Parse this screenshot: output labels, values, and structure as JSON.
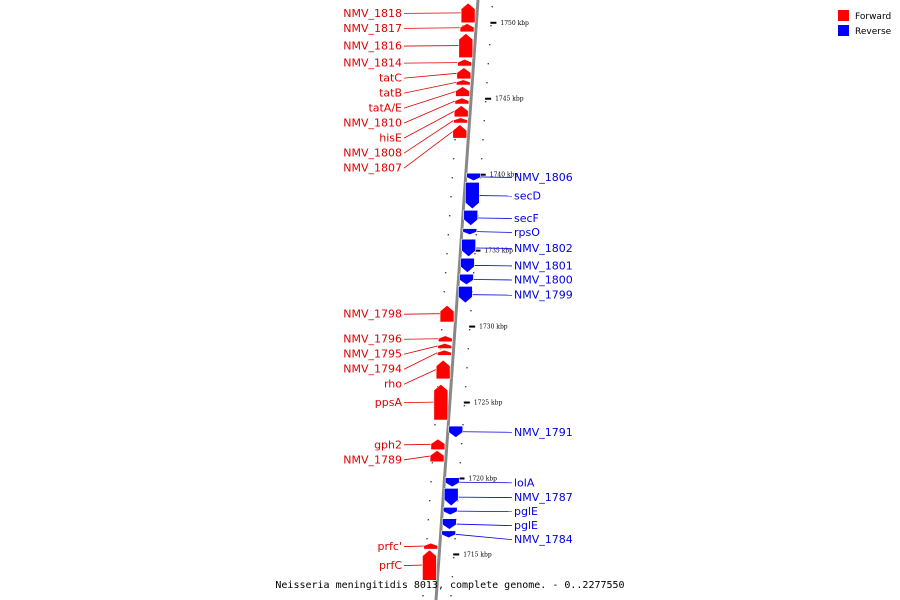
{
  "caption": "Neisseria meningitidis 8013, complete genome. - 0..2277550",
  "legend": [
    {
      "label": "Forward",
      "color": "#ff0000"
    },
    {
      "label": "Reverse",
      "color": "#0000ff"
    }
  ],
  "colors": {
    "forward": "#ff0000",
    "reverse": "#0000ff",
    "forward_text": "#e00000",
    "reverse_text": "#0000dd",
    "axis": "#888888"
  },
  "scale": [
    {
      "kbp": 1750,
      "label": "1750 kbp"
    },
    {
      "kbp": 1745,
      "label": "1745 kbp"
    },
    {
      "kbp": 1740,
      "label": "1740 kbp"
    },
    {
      "kbp": 1735,
      "label": "1735 kbp"
    },
    {
      "kbp": 1730,
      "label": "1730 kbp"
    },
    {
      "kbp": 1725,
      "label": "1725 kbp"
    },
    {
      "kbp": 1720,
      "label": "1720 kbp"
    },
    {
      "kbp": 1715,
      "label": "1715 kbp"
    }
  ],
  "forward_genes": [
    {
      "name": "NMV_1818",
      "start_kbp": 1750.0,
      "end_kbp": 1751.3
    },
    {
      "name": "NMV_1817",
      "start_kbp": 1749.4,
      "end_kbp": 1749.95
    },
    {
      "name": "NMV_1816",
      "start_kbp": 1747.7,
      "end_kbp": 1749.3
    },
    {
      "name": "NMV_1814",
      "start_kbp": 1747.15,
      "end_kbp": 1747.6
    },
    {
      "name": "tatC",
      "start_kbp": 1746.3,
      "end_kbp": 1747.05
    },
    {
      "name": "tatB",
      "start_kbp": 1745.9,
      "end_kbp": 1746.25
    },
    {
      "name": "tatA/E",
      "start_kbp": 1745.15,
      "end_kbp": 1745.8
    },
    {
      "name": "NMV_1810",
      "start_kbp": 1744.65,
      "end_kbp": 1745.05
    },
    {
      "name": "hisE",
      "start_kbp": 1743.8,
      "end_kbp": 1744.55
    },
    {
      "name": "NMV_1808",
      "start_kbp": 1743.4,
      "end_kbp": 1743.75
    },
    {
      "name": "NMV_1807",
      "start_kbp": 1742.4,
      "end_kbp": 1743.3
    },
    {
      "name": "NMV_1798",
      "start_kbp": 1730.3,
      "end_kbp": 1731.4
    },
    {
      "name": "NMV_1796",
      "start_kbp": 1729.0,
      "end_kbp": 1729.4
    },
    {
      "name": "NMV_1795",
      "start_kbp": 1728.55,
      "end_kbp": 1728.9
    },
    {
      "name": "NMV_1794",
      "start_kbp": 1728.1,
      "end_kbp": 1728.45
    },
    {
      "name": "rho",
      "start_kbp": 1726.55,
      "end_kbp": 1727.8
    },
    {
      "name": "ppsA",
      "start_kbp": 1723.85,
      "end_kbp": 1726.2
    },
    {
      "name": "gph2",
      "start_kbp": 1721.9,
      "end_kbp": 1722.6
    },
    {
      "name": "NMV_1789",
      "start_kbp": 1721.1,
      "end_kbp": 1721.85
    },
    {
      "name": "prfc'",
      "start_kbp": 1715.35,
      "end_kbp": 1715.75
    },
    {
      "name": "prfC",
      "start_kbp": 1713.3,
      "end_kbp": 1715.3
    }
  ],
  "reverse_genes": [
    {
      "name": "NMV_1806",
      "start_kbp": 1739.6,
      "end_kbp": 1740.1
    },
    {
      "name": "secD",
      "start_kbp": 1737.75,
      "end_kbp": 1739.5
    },
    {
      "name": "secF",
      "start_kbp": 1736.65,
      "end_kbp": 1737.65
    },
    {
      "name": "rpsO",
      "start_kbp": 1736.05,
      "end_kbp": 1736.45
    },
    {
      "name": "NMV_1802",
      "start_kbp": 1734.6,
      "end_kbp": 1735.75
    },
    {
      "name": "NMV_1801",
      "start_kbp": 1733.55,
      "end_kbp": 1734.5
    },
    {
      "name": "NMV_1800",
      "start_kbp": 1732.75,
      "end_kbp": 1733.45
    },
    {
      "name": "NMV_1799",
      "start_kbp": 1731.55,
      "end_kbp": 1732.65
    },
    {
      "name": "NMV_1791",
      "start_kbp": 1722.7,
      "end_kbp": 1723.45
    },
    {
      "name": "lolA",
      "start_kbp": 1719.45,
      "end_kbp": 1720.05
    },
    {
      "name": "NMV_1787",
      "start_kbp": 1718.2,
      "end_kbp": 1719.35
    },
    {
      "name": "pglE",
      "start_kbp": 1717.6,
      "end_kbp": 1718.1
    },
    {
      "name": "pglE",
      "start_kbp": 1716.65,
      "end_kbp": 1717.35
    },
    {
      "name": "NMV_1784",
      "start_kbp": 1716.1,
      "end_kbp": 1716.55
    }
  ]
}
